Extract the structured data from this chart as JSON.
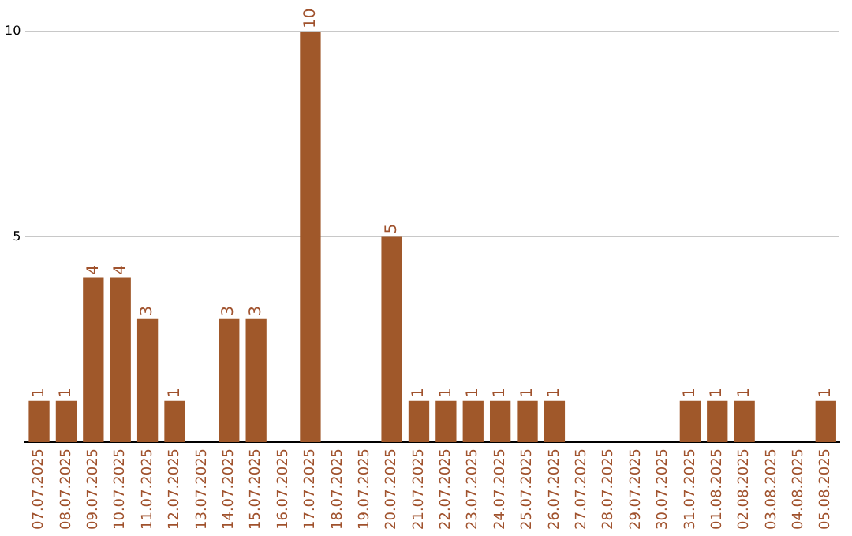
{
  "chart_data": {
    "type": "bar",
    "categories": [
      "07.07.2025",
      "08.07.2025",
      "09.07.2025",
      "10.07.2025",
      "11.07.2025",
      "12.07.2025",
      "13.07.2025",
      "14.07.2025",
      "15.07.2025",
      "16.07.2025",
      "17.07.2025",
      "18.07.2025",
      "19.07.2025",
      "20.07.2025",
      "21.07.2025",
      "22.07.2025",
      "23.07.2025",
      "24.07.2025",
      "25.07.2025",
      "26.07.2025",
      "27.07.2025",
      "28.07.2025",
      "29.07.2025",
      "30.07.2025",
      "31.07.2025",
      "01.08.2025",
      "02.08.2025",
      "03.08.2025",
      "04.08.2025",
      "05.08.2025"
    ],
    "values": [
      1,
      1,
      4,
      4,
      3,
      1,
      0,
      3,
      3,
      0,
      10,
      0,
      0,
      5,
      1,
      1,
      1,
      1,
      1,
      1,
      0,
      0,
      0,
      0,
      1,
      1,
      1,
      0,
      0,
      1
    ],
    "value_labels": [
      "1",
      "1",
      "4",
      "4",
      "3",
      "1",
      null,
      "3",
      "3",
      null,
      "10",
      null,
      null,
      "5",
      "1",
      "1",
      "1",
      "1",
      "1",
      "1",
      null,
      null,
      null,
      null,
      "1",
      "1",
      "1",
      null,
      null,
      "1"
    ],
    "color": "#a0582a",
    "ylim": [
      0,
      10
    ],
    "yticks": [
      5,
      10
    ],
    "grid": "y"
  }
}
